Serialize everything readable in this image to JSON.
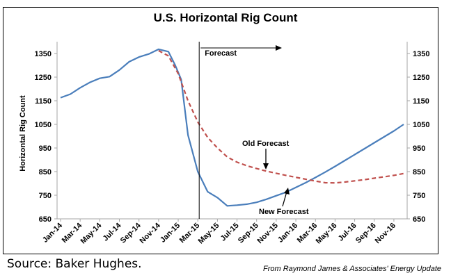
{
  "chart_data": {
    "type": "line",
    "title": "U.S. Horizontal Rig Count",
    "ylabel": "Horizontal Rig Count",
    "xlabel": "",
    "ylim": [
      650,
      1400
    ],
    "yticks": [
      650,
      750,
      850,
      950,
      1050,
      1150,
      1250,
      1350
    ],
    "x_tick_labels": [
      "Jan-14",
      "Mar-14",
      "May-14",
      "Jul-14",
      "Sep-14",
      "Nov-14",
      "Jan-15",
      "Mar-15",
      "May-15",
      "Jul-15",
      "Sep-15",
      "Nov-15",
      "Jan-16",
      "Mar-16",
      "May-16",
      "Jul-16",
      "Sep-16",
      "Nov-16"
    ],
    "x_months": 36,
    "forecast_start_month": 14,
    "grid": false,
    "series": [
      {
        "label": "Actual / New Forecast",
        "color": "#4a7ebb",
        "style": "solid",
        "points": [
          [
            0,
            1163
          ],
          [
            1,
            1178
          ],
          [
            2,
            1205
          ],
          [
            3,
            1228
          ],
          [
            4,
            1245
          ],
          [
            5,
            1252
          ],
          [
            6,
            1280
          ],
          [
            7,
            1315
          ],
          [
            8,
            1335
          ],
          [
            9,
            1348
          ],
          [
            10,
            1368
          ],
          [
            11,
            1358
          ],
          [
            11.7,
            1300
          ],
          [
            12.3,
            1240
          ],
          [
            13,
            1005
          ],
          [
            14,
            850
          ],
          [
            15,
            765
          ],
          [
            16,
            740
          ],
          [
            17,
            705
          ],
          [
            18,
            708
          ],
          [
            19,
            712
          ],
          [
            20,
            720
          ],
          [
            21,
            733
          ],
          [
            22,
            748
          ],
          [
            23,
            763
          ],
          [
            24,
            783
          ],
          [
            25,
            803
          ],
          [
            26,
            825
          ],
          [
            27,
            848
          ],
          [
            28,
            872
          ],
          [
            29,
            897
          ],
          [
            30,
            922
          ],
          [
            31,
            947
          ],
          [
            32,
            972
          ],
          [
            33,
            997
          ],
          [
            34,
            1022
          ],
          [
            35,
            1050
          ]
        ]
      },
      {
        "label": "Old Forecast",
        "color": "#c0504d",
        "style": "dashed",
        "points": [
          [
            10,
            1362
          ],
          [
            11,
            1340
          ],
          [
            12,
            1265
          ],
          [
            13,
            1150
          ],
          [
            14,
            1060
          ],
          [
            15,
            995
          ],
          [
            16,
            950
          ],
          [
            17,
            912
          ],
          [
            18,
            890
          ],
          [
            19,
            875
          ],
          [
            20,
            863
          ],
          [
            21,
            852
          ],
          [
            22,
            843
          ],
          [
            23,
            834
          ],
          [
            24,
            826
          ],
          [
            25,
            818
          ],
          [
            26,
            810
          ],
          [
            27,
            803
          ],
          [
            28,
            802
          ],
          [
            29,
            806
          ],
          [
            30,
            811
          ],
          [
            31,
            816
          ],
          [
            32,
            822
          ],
          [
            33,
            828
          ],
          [
            34,
            834
          ],
          [
            35,
            842
          ]
        ]
      }
    ],
    "annotations": {
      "forecast": "Forecast",
      "old_forecast": "Old Forecast",
      "new_forecast": "New Forecast"
    }
  },
  "footer": {
    "source": "Source: Baker Hughes.",
    "credit": "From Raymond James & Associates' Energy Update"
  },
  "colors": {
    "new_forecast": "#4a7ebb",
    "old_forecast": "#c0504d",
    "axis": "#a6a6a6"
  }
}
